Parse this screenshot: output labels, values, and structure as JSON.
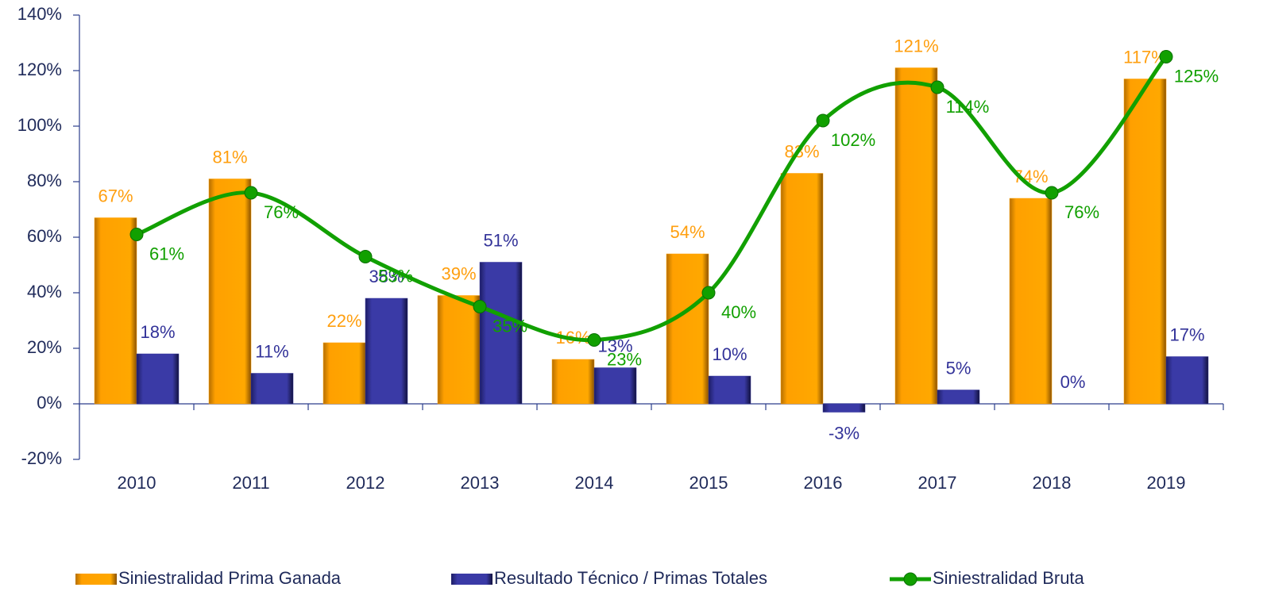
{
  "chart_data": {
    "type": "bar",
    "categories": [
      "2010",
      "2011",
      "2012",
      "2013",
      "2014",
      "2015",
      "2016",
      "2017",
      "2018",
      "2019"
    ],
    "series": [
      {
        "name": "Siniestralidad Prima Ganada",
        "type": "bar",
        "color": "#FFA000",
        "values": [
          67,
          81,
          22,
          39,
          16,
          54,
          83,
          121,
          74,
          117
        ],
        "value_labels": [
          "67%",
          "81%",
          "22%",
          "39%",
          "16%",
          "54%",
          "83%",
          "121%",
          "74%",
          "117%"
        ]
      },
      {
        "name": "Resultado Técnico / Primas Totales",
        "type": "bar",
        "color": "#333399",
        "values": [
          18,
          11,
          38,
          51,
          13,
          10,
          -3,
          5,
          0,
          17
        ],
        "value_labels": [
          "18%",
          "11%",
          "38%",
          "51%",
          "13%",
          "10%",
          "-3%",
          "5%",
          "0%",
          "17%"
        ]
      },
      {
        "name": "Siniestralidad Bruta",
        "type": "line",
        "color": "#11A000",
        "values": [
          61,
          76,
          53,
          35,
          23,
          40,
          102,
          114,
          76,
          125
        ],
        "value_labels": [
          "61%",
          "76%",
          "53%",
          "35%",
          "23%",
          "40%",
          "102%",
          "114%",
          "76%",
          "125%"
        ]
      }
    ],
    "ylim": [
      -20,
      140
    ],
    "yticks": [
      {
        "value": -20,
        "label": "-20%"
      },
      {
        "value": 0,
        "label": "0%"
      },
      {
        "value": 20,
        "label": "20%"
      },
      {
        "value": 40,
        "label": "40%"
      },
      {
        "value": 60,
        "label": "60%"
      },
      {
        "value": 80,
        "label": "80%"
      },
      {
        "value": 100,
        "label": "100%"
      },
      {
        "value": 120,
        "label": "120%"
      },
      {
        "value": 140,
        "label": "140%"
      }
    ],
    "legend": "bottom"
  }
}
